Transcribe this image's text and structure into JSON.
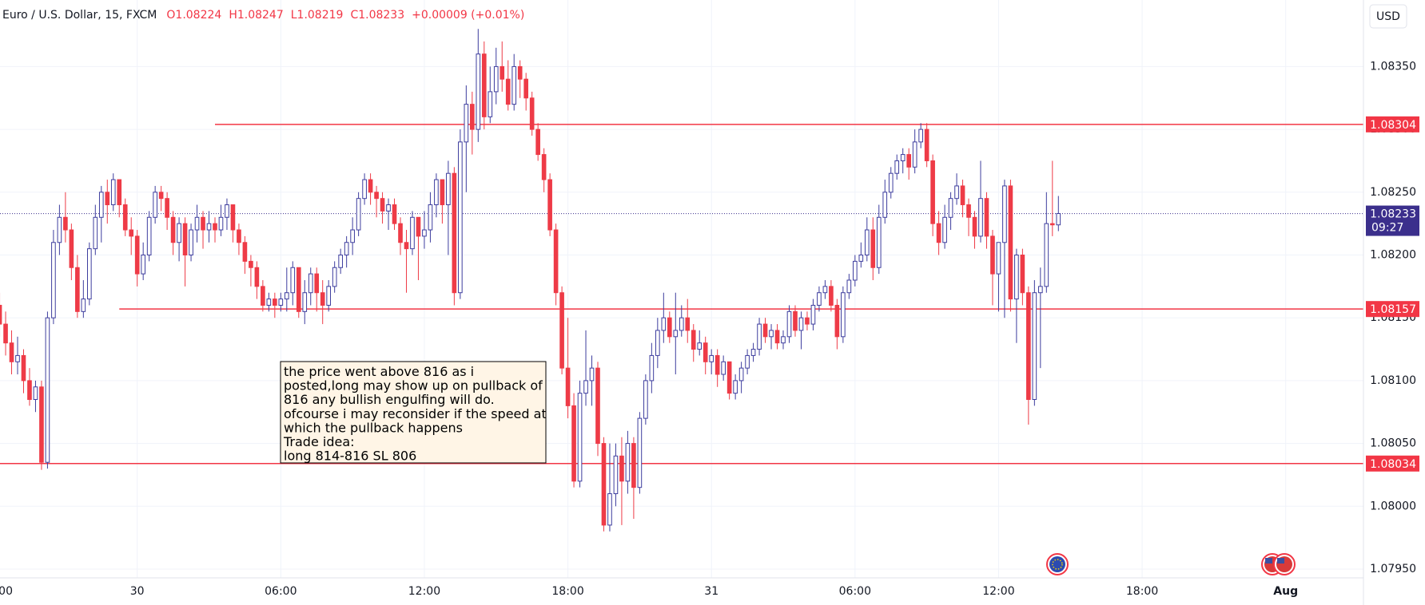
{
  "chart_data": {
    "type": "candlestick",
    "legend": {
      "symbol": "Euro / U.S. Dollar, 15, FXCM",
      "values": [
        "O1.08224",
        "H1.08247",
        "L1.08219",
        "C1.08233",
        "+0.00009 (+0.01%)"
      ]
    },
    "currency": "USD",
    "up_color": "#3d3d9e",
    "down_color": "#ee3b47",
    "xlim": [
      -5.735,
      51.25
    ],
    "ylim": [
      1.07943,
      1.08403
    ],
    "grid": true,
    "xticks": [
      {
        "value": -6,
        "label": "00"
      },
      {
        "value": 0,
        "label": "30"
      },
      {
        "value": 6,
        "label": "06:00"
      },
      {
        "value": 12,
        "label": "12:00"
      },
      {
        "value": 18,
        "label": "18:00"
      },
      {
        "value": 24,
        "label": "31"
      },
      {
        "value": 30,
        "label": "06:00"
      },
      {
        "value": 36,
        "label": "12:00"
      },
      {
        "value": 42,
        "label": "18:00"
      },
      {
        "value": 48,
        "label": "Aug"
      }
    ],
    "yticks": [
      {
        "value": 1.0795,
        "label": "1.07950"
      },
      {
        "value": 1.08,
        "label": "1.08000"
      },
      {
        "value": 1.0805,
        "label": "1.08050"
      },
      {
        "value": 1.081,
        "label": "1.08100"
      },
      {
        "value": 1.0815,
        "label": "1.08150"
      },
      {
        "value": 1.082,
        "label": "1.08200"
      },
      {
        "value": 1.0825,
        "label": "1.08250"
      },
      {
        "value": 1.083,
        "label": "1.08300"
      },
      {
        "value": 1.0835,
        "label": "1.08350"
      }
    ],
    "levels": [
      {
        "value": 1.08304,
        "from": 3.25
      },
      {
        "value": 1.08157,
        "from": -0.75
      },
      {
        "value": 1.08034,
        "from": -5.75
      }
    ],
    "level_color": "#f23645",
    "last_price": {
      "value": 1.08233,
      "countdown": "09:27",
      "color": "#3b2f8c"
    },
    "annotation": {
      "lines": [
        "the price went above 816 as i",
        "posted,long may show up on pullback of",
        "816 any bullish engulfing will do.",
        "ofcourse i may reconsider if the speed at",
        "which the pullback happens",
        "Trade idea:",
        "long 814-816 SL 806"
      ]
    },
    "candles": [
      [
        -5.75,
        1.0816,
        1.0817,
        1.08135,
        1.08145
      ],
      [
        -5.5,
        1.08145,
        1.08155,
        1.0812,
        1.0813
      ],
      [
        -5.25,
        1.0813,
        1.0814,
        1.08105,
        1.08115
      ],
      [
        -5,
        1.08115,
        1.08135,
        1.08105,
        1.0812
      ],
      [
        -4.75,
        1.0812,
        1.08125,
        1.0809,
        1.081
      ],
      [
        -4.5,
        1.081,
        1.0811,
        1.0808,
        1.08085
      ],
      [
        -4.25,
        1.08085,
        1.081,
        1.08075,
        1.08095
      ],
      [
        -4,
        1.08095,
        1.081,
        1.08029,
        1.08035
      ],
      [
        -3.75,
        1.08035,
        1.08155,
        1.0803,
        1.0815
      ],
      [
        -3.5,
        1.0815,
        1.0822,
        1.08145,
        1.0821
      ],
      [
        -3.25,
        1.0821,
        1.0824,
        1.082,
        1.0823
      ],
      [
        -3,
        1.0823,
        1.0825,
        1.0821,
        1.0822
      ],
      [
        -2.75,
        1.0822,
        1.08225,
        1.0818,
        1.0819
      ],
      [
        -2.5,
        1.0819,
        1.082,
        1.0815,
        1.08155
      ],
      [
        -2.25,
        1.08155,
        1.0818,
        1.0815,
        1.08165
      ],
      [
        -2,
        1.08165,
        1.0821,
        1.0816,
        1.08205
      ],
      [
        -1.75,
        1.08205,
        1.0824,
        1.082,
        1.0823
      ],
      [
        -1.5,
        1.0823,
        1.08255,
        1.0821,
        1.0825
      ],
      [
        -1.25,
        1.0825,
        1.0826,
        1.08225,
        1.0824
      ],
      [
        -1,
        1.0824,
        1.08265,
        1.08235,
        1.0826
      ],
      [
        -0.75,
        1.0826,
        1.0826,
        1.0823,
        1.0824
      ],
      [
        -0.5,
        1.0824,
        1.08245,
        1.08215,
        1.0822
      ],
      [
        -0.25,
        1.0822,
        1.0823,
        1.082,
        1.08215
      ],
      [
        0,
        1.08215,
        1.0822,
        1.08175,
        1.08185
      ],
      [
        0.25,
        1.08185,
        1.0821,
        1.0818,
        1.082
      ],
      [
        0.5,
        1.082,
        1.08235,
        1.08195,
        1.0823
      ],
      [
        0.75,
        1.0823,
        1.08255,
        1.08225,
        1.0825
      ],
      [
        1,
        1.0825,
        1.08255,
        1.08235,
        1.08245
      ],
      [
        1.25,
        1.08245,
        1.0825,
        1.0822,
        1.0823
      ],
      [
        1.5,
        1.0823,
        1.08235,
        1.082,
        1.0821
      ],
      [
        1.75,
        1.0821,
        1.0823,
        1.08195,
        1.08225
      ],
      [
        2,
        1.08225,
        1.0823,
        1.08175,
        1.082
      ],
      [
        2.25,
        1.082,
        1.08225,
        1.08195,
        1.0822
      ],
      [
        2.5,
        1.0822,
        1.0824,
        1.0821,
        1.0823
      ],
      [
        2.75,
        1.0823,
        1.08235,
        1.08205,
        1.0822
      ],
      [
        3,
        1.0822,
        1.08235,
        1.0821,
        1.08225
      ],
      [
        3.25,
        1.08225,
        1.0823,
        1.0821,
        1.0822
      ],
      [
        3.5,
        1.0822,
        1.0824,
        1.08215,
        1.0823
      ],
      [
        3.75,
        1.0823,
        1.08245,
        1.0822,
        1.0824
      ],
      [
        4,
        1.0824,
        1.0824,
        1.0821,
        1.0822
      ],
      [
        4.25,
        1.0822,
        1.08225,
        1.082,
        1.0821
      ],
      [
        4.5,
        1.0821,
        1.08215,
        1.08185,
        1.08195
      ],
      [
        4.75,
        1.08195,
        1.082,
        1.08175,
        1.0819
      ],
      [
        5,
        1.0819,
        1.08195,
        1.08165,
        1.08175
      ],
      [
        5.25,
        1.08175,
        1.0818,
        1.08155,
        1.0816
      ],
      [
        5.5,
        1.0816,
        1.0817,
        1.08155,
        1.08165
      ],
      [
        5.75,
        1.08165,
        1.0817,
        1.0815,
        1.0816
      ],
      [
        6,
        1.0816,
        1.0817,
        1.08155,
        1.08165
      ],
      [
        6.25,
        1.08165,
        1.0819,
        1.08155,
        1.0817
      ],
      [
        6.5,
        1.0817,
        1.08195,
        1.0816,
        1.0819
      ],
      [
        6.75,
        1.0819,
        1.0819,
        1.0815,
        1.08155
      ],
      [
        7,
        1.08155,
        1.0818,
        1.08145,
        1.0817
      ],
      [
        7.25,
        1.0817,
        1.0819,
        1.0816,
        1.08185
      ],
      [
        7.5,
        1.08185,
        1.0819,
        1.08155,
        1.0817
      ],
      [
        7.75,
        1.0817,
        1.0818,
        1.08145,
        1.0816
      ],
      [
        8,
        1.0816,
        1.0818,
        1.08155,
        1.08175
      ],
      [
        8.25,
        1.08175,
        1.08195,
        1.0817,
        1.0819
      ],
      [
        8.5,
        1.0819,
        1.08205,
        1.08185,
        1.082
      ],
      [
        8.75,
        1.082,
        1.08215,
        1.0819,
        1.0821
      ],
      [
        9,
        1.0821,
        1.0823,
        1.082,
        1.0822
      ],
      [
        9.25,
        1.0822,
        1.0825,
        1.08215,
        1.08245
      ],
      [
        9.5,
        1.08245,
        1.08265,
        1.0824,
        1.0826
      ],
      [
        9.75,
        1.0826,
        1.08265,
        1.0824,
        1.0825
      ],
      [
        10,
        1.0825,
        1.08255,
        1.0823,
        1.08245
      ],
      [
        10.25,
        1.08245,
        1.0825,
        1.08225,
        1.08235
      ],
      [
        10.5,
        1.08235,
        1.08245,
        1.0822,
        1.0824
      ],
      [
        10.75,
        1.0824,
        1.08245,
        1.0822,
        1.08225
      ],
      [
        11,
        1.08225,
        1.0823,
        1.082,
        1.0821
      ],
      [
        11.25,
        1.0821,
        1.0822,
        1.0817,
        1.08205
      ],
      [
        11.5,
        1.08205,
        1.08235,
        1.082,
        1.0823
      ],
      [
        11.75,
        1.0823,
        1.0823,
        1.0818,
        1.08215
      ],
      [
        12,
        1.08215,
        1.08235,
        1.08205,
        1.0822
      ],
      [
        12.25,
        1.0822,
        1.0825,
        1.0821,
        1.0824
      ],
      [
        12.5,
        1.0824,
        1.08265,
        1.0823,
        1.0826
      ],
      [
        12.75,
        1.0826,
        1.0826,
        1.08225,
        1.0824
      ],
      [
        13,
        1.0824,
        1.08275,
        1.082,
        1.08265
      ],
      [
        13.25,
        1.08265,
        1.0827,
        1.0816,
        1.0817
      ],
      [
        13.5,
        1.0817,
        1.083,
        1.08165,
        1.0829
      ],
      [
        13.75,
        1.0829,
        1.08335,
        1.0825,
        1.0832
      ],
      [
        14,
        1.0832,
        1.0833,
        1.0828,
        1.083
      ],
      [
        14.25,
        1.083,
        1.0838,
        1.0829,
        1.0836
      ],
      [
        14.5,
        1.0836,
        1.0837,
        1.083,
        1.0831
      ],
      [
        14.75,
        1.0831,
        1.0835,
        1.08305,
        1.0833
      ],
      [
        15,
        1.0833,
        1.08365,
        1.0832,
        1.0835
      ],
      [
        15.25,
        1.0835,
        1.0837,
        1.0833,
        1.0834
      ],
      [
        15.5,
        1.0834,
        1.08355,
        1.08315,
        1.0832
      ],
      [
        15.75,
        1.0832,
        1.0836,
        1.08315,
        1.0835
      ],
      [
        16,
        1.0835,
        1.08355,
        1.08325,
        1.0834
      ],
      [
        16.25,
        1.0834,
        1.08345,
        1.08315,
        1.08325
      ],
      [
        16.5,
        1.08325,
        1.0833,
        1.08295,
        1.083
      ],
      [
        16.75,
        1.083,
        1.08305,
        1.08275,
        1.0828
      ],
      [
        17,
        1.0828,
        1.08285,
        1.0825,
        1.0826
      ],
      [
        17.25,
        1.0826,
        1.08265,
        1.08215,
        1.0822
      ],
      [
        17.5,
        1.0822,
        1.08225,
        1.0816,
        1.0817
      ],
      [
        17.75,
        1.0817,
        1.08175,
        1.08105,
        1.0811
      ],
      [
        18,
        1.0811,
        1.0815,
        1.0807,
        1.0808
      ],
      [
        18.25,
        1.0808,
        1.0809,
        1.08015,
        1.0802
      ],
      [
        18.5,
        1.0802,
        1.081,
        1.08015,
        1.0809
      ],
      [
        18.75,
        1.0809,
        1.0814,
        1.0808,
        1.081
      ],
      [
        19,
        1.081,
        1.0812,
        1.0808,
        1.0811
      ],
      [
        19.25,
        1.0811,
        1.08115,
        1.0804,
        1.0805
      ],
      [
        19.5,
        1.0805,
        1.08055,
        1.0798,
        1.07985
      ],
      [
        19.75,
        1.07985,
        1.0805,
        1.0798,
        1.0801
      ],
      [
        20,
        1.0801,
        1.0805,
        1.08,
        1.0804
      ],
      [
        20.25,
        1.0804,
        1.08055,
        1.07985,
        1.0802
      ],
      [
        20.5,
        1.0802,
        1.0806,
        1.0801,
        1.0805
      ],
      [
        20.75,
        1.0805,
        1.08055,
        1.0799,
        1.08015
      ],
      [
        21,
        1.08015,
        1.08075,
        1.0801,
        1.0807
      ],
      [
        21.25,
        1.0807,
        1.08105,
        1.08065,
        1.081
      ],
      [
        21.5,
        1.081,
        1.0813,
        1.0809,
        1.0812
      ],
      [
        21.75,
        1.0812,
        1.0815,
        1.0811,
        1.0814
      ],
      [
        22,
        1.0814,
        1.0817,
        1.0813,
        1.0815
      ],
      [
        22.25,
        1.0815,
        1.08155,
        1.0813,
        1.08135
      ],
      [
        22.5,
        1.08135,
        1.0817,
        1.08105,
        1.0814
      ],
      [
        22.75,
        1.0814,
        1.0816,
        1.08135,
        1.0815
      ],
      [
        23,
        1.0815,
        1.08165,
        1.0813,
        1.0814
      ],
      [
        23.25,
        1.0814,
        1.08145,
        1.08115,
        1.08125
      ],
      [
        23.5,
        1.08125,
        1.0814,
        1.0812,
        1.0813
      ],
      [
        23.75,
        1.0813,
        1.08135,
        1.08105,
        1.08115
      ],
      [
        24,
        1.08115,
        1.08125,
        1.08105,
        1.0812
      ],
      [
        24.25,
        1.0812,
        1.08125,
        1.08095,
        1.08105
      ],
      [
        24.5,
        1.08105,
        1.0812,
        1.081,
        1.08115
      ],
      [
        24.75,
        1.08115,
        1.08115,
        1.08085,
        1.0809
      ],
      [
        25,
        1.0809,
        1.08105,
        1.08085,
        1.081
      ],
      [
        25.25,
        1.081,
        1.08115,
        1.0809,
        1.0811
      ],
      [
        25.5,
        1.0811,
        1.08125,
        1.08105,
        1.0812
      ],
      [
        25.75,
        1.0812,
        1.0813,
        1.08115,
        1.08125
      ],
      [
        26,
        1.08125,
        1.0815,
        1.0812,
        1.08145
      ],
      [
        26.25,
        1.08145,
        1.0815,
        1.0813,
        1.08135
      ],
      [
        26.5,
        1.08135,
        1.08145,
        1.08125,
        1.0814
      ],
      [
        26.75,
        1.0814,
        1.08145,
        1.08125,
        1.0813
      ],
      [
        27,
        1.0813,
        1.0814,
        1.08125,
        1.08135
      ],
      [
        27.25,
        1.08135,
        1.0816,
        1.0813,
        1.08155
      ],
      [
        27.5,
        1.08155,
        1.0816,
        1.08135,
        1.0814
      ],
      [
        27.75,
        1.0814,
        1.08155,
        1.08125,
        1.0815
      ],
      [
        28,
        1.0815,
        1.08155,
        1.0814,
        1.08145
      ],
      [
        28.25,
        1.08145,
        1.08165,
        1.0814,
        1.0816
      ],
      [
        28.5,
        1.0816,
        1.08175,
        1.08155,
        1.0817
      ],
      [
        28.75,
        1.0817,
        1.0818,
        1.08165,
        1.08175
      ],
      [
        29,
        1.08175,
        1.0818,
        1.08155,
        1.0816
      ],
      [
        29.25,
        1.0816,
        1.08165,
        1.08125,
        1.08135
      ],
      [
        29.5,
        1.08135,
        1.08175,
        1.0813,
        1.0817
      ],
      [
        29.75,
        1.0817,
        1.08185,
        1.08165,
        1.0818
      ],
      [
        30,
        1.0818,
        1.082,
        1.08175,
        1.08195
      ],
      [
        30.25,
        1.08195,
        1.0821,
        1.0819,
        1.082
      ],
      [
        30.5,
        1.082,
        1.0823,
        1.08195,
        1.0822
      ],
      [
        30.75,
        1.0822,
        1.0823,
        1.0818,
        1.0819
      ],
      [
        31,
        1.0819,
        1.0824,
        1.08185,
        1.0823
      ],
      [
        31.25,
        1.0823,
        1.0826,
        1.08225,
        1.0825
      ],
      [
        31.5,
        1.0825,
        1.0827,
        1.08245,
        1.08265
      ],
      [
        31.75,
        1.08265,
        1.0828,
        1.0826,
        1.08275
      ],
      [
        32,
        1.08275,
        1.08285,
        1.08265,
        1.0828
      ],
      [
        32.25,
        1.0828,
        1.08285,
        1.0826,
        1.0827
      ],
      [
        32.5,
        1.0827,
        1.083,
        1.08265,
        1.0829
      ],
      [
        32.75,
        1.0829,
        1.08305,
        1.08285,
        1.083
      ],
      [
        33,
        1.083,
        1.08305,
        1.0827,
        1.08275
      ],
      [
        33.25,
        1.08275,
        1.0828,
        1.08215,
        1.08225
      ],
      [
        33.5,
        1.08225,
        1.08235,
        1.082,
        1.0821
      ],
      [
        33.75,
        1.0821,
        1.0824,
        1.08205,
        1.0823
      ],
      [
        34,
        1.0823,
        1.0825,
        1.0822,
        1.08245
      ],
      [
        34.25,
        1.08245,
        1.08265,
        1.0824,
        1.08255
      ],
      [
        34.5,
        1.08255,
        1.0826,
        1.0823,
        1.0824
      ],
      [
        34.75,
        1.0824,
        1.08245,
        1.08215,
        1.0823
      ],
      [
        35,
        1.0823,
        1.08235,
        1.08205,
        1.08215
      ],
      [
        35.25,
        1.08215,
        1.08275,
        1.0821,
        1.08245
      ],
      [
        35.5,
        1.08245,
        1.0825,
        1.08205,
        1.08215
      ],
      [
        35.75,
        1.08215,
        1.0822,
        1.0816,
        1.08185
      ],
      [
        36,
        1.08185,
        1.0821,
        1.08155,
        1.0821
      ],
      [
        36.25,
        1.0821,
        1.0826,
        1.0815,
        1.08255
      ],
      [
        36.5,
        1.08255,
        1.0826,
        1.08155,
        1.08165
      ],
      [
        36.75,
        1.08165,
        1.08205,
        1.0813,
        1.082
      ],
      [
        37,
        1.082,
        1.08205,
        1.0816,
        1.0817
      ],
      [
        37.25,
        1.0817,
        1.08175,
        1.08065,
        1.08085
      ],
      [
        37.5,
        1.08085,
        1.0818,
        1.0808,
        1.0817
      ],
      [
        37.75,
        1.0817,
        1.0819,
        1.0811,
        1.08175
      ],
      [
        38,
        1.08175,
        1.0825,
        1.0817,
        1.08225
      ],
      [
        38.25,
        1.08225,
        1.08275,
        1.08215,
        1.08224
      ],
      [
        38.5,
        1.08224,
        1.08247,
        1.08219,
        1.08233
      ]
    ]
  }
}
